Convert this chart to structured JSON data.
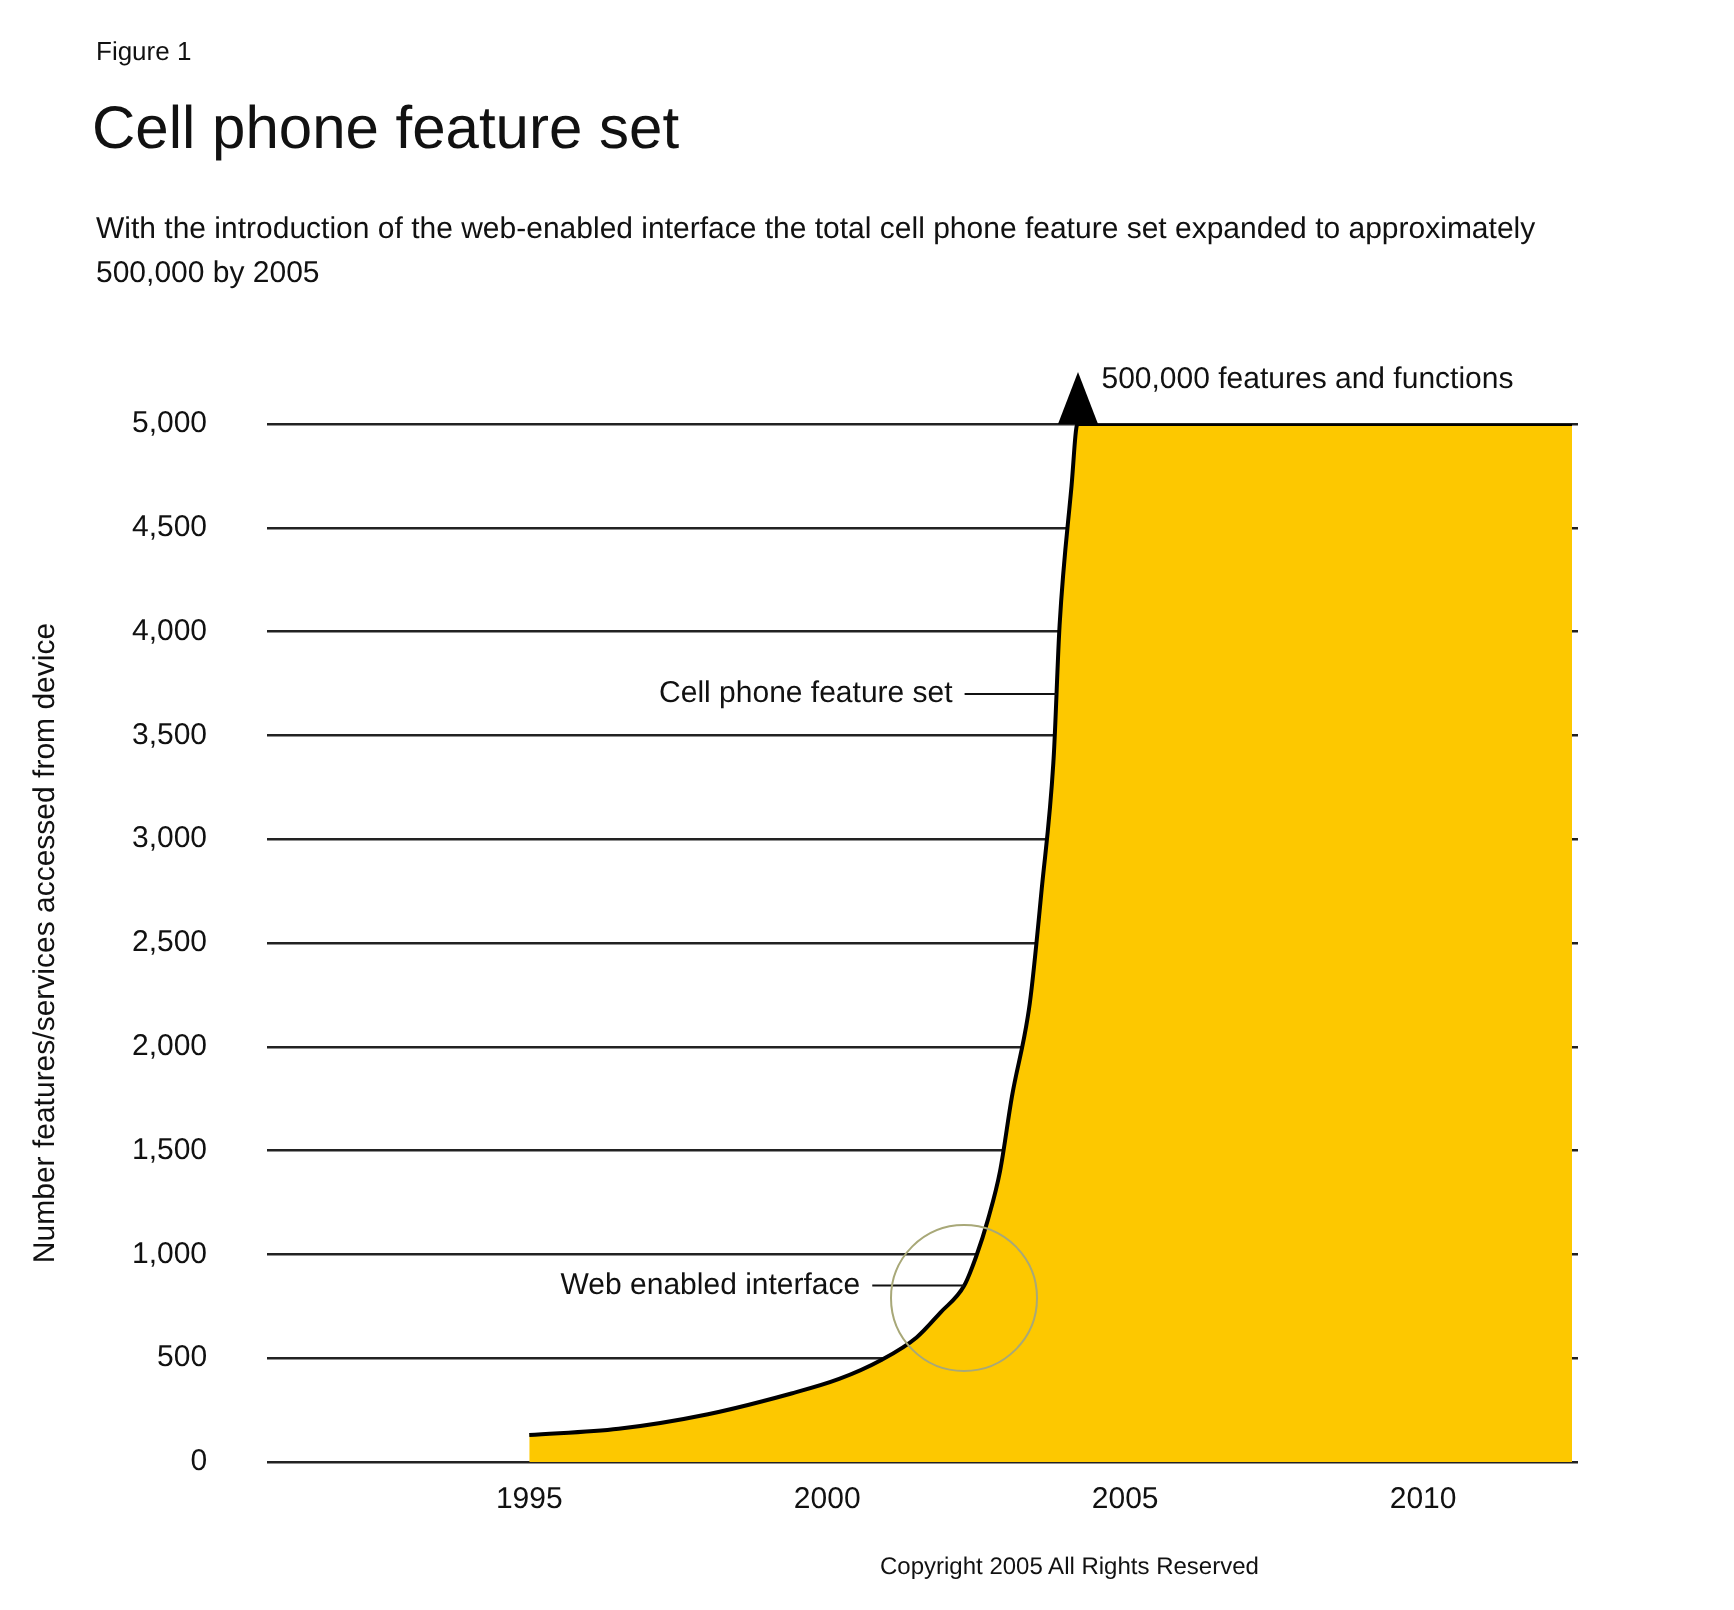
{
  "chart_data": {
    "type": "area",
    "title": "Cell phone feature set",
    "subtitle": "With the introduction of the web-enabled interface the total cell phone feature set expanded to approximately 500,000 by 2005",
    "ylabel": "Number features/services accessed from device",
    "series": [
      {
        "color": "#fdc800",
        "x": [
          1995,
          1996.5,
          1998,
          1999.4,
          2000.2,
          2000.9,
          2001.5,
          2001.9,
          2002.3,
          2002.5,
          2002.7,
          2002.9,
          2003.1,
          2003.4,
          2003.6,
          2003.8,
          2003.9,
          2004.1,
          2004.2,
          2012.5
        ],
        "values": [
          130,
          160,
          230,
          330,
          400,
          490,
          600,
          720,
          850,
          990,
          1170,
          1400,
          1760,
          2210,
          2760,
          3390,
          4030,
          4700,
          5000,
          5000
        ]
      }
    ],
    "xlim": [
      1990.6,
      2012.6
    ],
    "xticks": [
      1995,
      2000,
      2005,
      2010
    ],
    "ylim": [
      0,
      5000
    ],
    "yticks": [
      {
        "value": 0,
        "label": "0"
      },
      {
        "value": 500,
        "label": "500"
      },
      {
        "value": 1000,
        "label": "1,000"
      },
      {
        "value": 1500,
        "label": "1,500"
      },
      {
        "value": 2000,
        "label": "2,000"
      },
      {
        "value": 2500,
        "label": "2,500"
      },
      {
        "value": 3000,
        "label": "3,000"
      },
      {
        "value": 3500,
        "label": "3,500"
      },
      {
        "value": 4000,
        "label": "4,000"
      },
      {
        "value": 4500,
        "label": "4,500"
      },
      {
        "value": 5000,
        "label": "5,000"
      }
    ],
    "grid": "y",
    "legend": false,
    "annotations": [
      "Figure 1",
      {
        "text": "Cell phone feature set",
        "x": 2003.85,
        "y": 3700
      },
      {
        "text": "Web enabled interface",
        "x": 2002.3,
        "y": 850
      },
      {
        "text": "500,000 features and functions",
        "x": 2004.2,
        "y": 5000
      },
      "Copyright 2005 All Rights Reserved"
    ]
  }
}
